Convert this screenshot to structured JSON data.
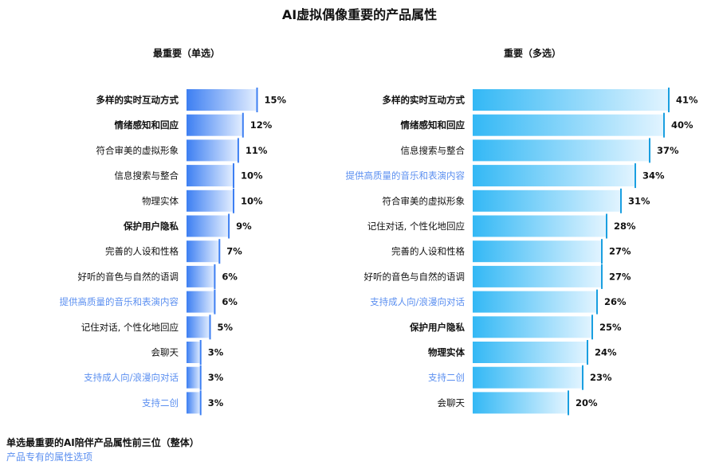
{
  "chart_data": [
    {
      "type": "bar",
      "orientation": "horizontal",
      "title": "AI虚拟偶像重要的产品属性",
      "subtitle": "最重要（单选）",
      "unit": "%",
      "categories": [
        "多样的实时互动方式",
        "情绪感知和回应",
        "符合审美的虚拟形象",
        "信息搜索与整合",
        "物理实体",
        "保护用户隐私",
        "完善的人设和性格",
        "好听的音色与自然的语调",
        "提供高质量的音乐和表演内容",
        "记住对话, 个性化地回应",
        "会聊天",
        "支持成人向/浪漫向对话",
        "支持二创"
      ],
      "values": [
        15,
        12,
        11,
        10,
        10,
        9,
        7,
        6,
        6,
        5,
        3,
        3,
        3
      ],
      "value_labels": [
        "15%",
        "12%",
        "11%",
        "10%",
        "10%",
        "9%",
        "7%",
        "6%",
        "6%",
        "5%",
        "3%",
        "3%",
        "3%"
      ],
      "bold": [
        true,
        true,
        false,
        false,
        false,
        true,
        false,
        false,
        false,
        false,
        false,
        false,
        false
      ],
      "highlight": [
        false,
        false,
        false,
        false,
        false,
        false,
        false,
        false,
        true,
        false,
        false,
        true,
        true
      ],
      "xlim": [
        0,
        45
      ],
      "color_start": "#3d7ff2",
      "color_end": "#e3eeff",
      "line_color": "#3d7ff2"
    },
    {
      "type": "bar",
      "orientation": "horizontal",
      "subtitle": "重要（多选）",
      "unit": "%",
      "categories": [
        "多样的实时互动方式",
        "情绪感知和回应",
        "信息搜索与整合",
        "提供高质量的音乐和表演内容",
        "符合审美的虚拟形象",
        "记住对话, 个性化地回应",
        "完善的人设和性格",
        "好听的音色与自然的语调",
        "支持成人向/浪漫向对话",
        "保护用户隐私",
        "物理实体",
        "支持二创",
        "会聊天"
      ],
      "values": [
        41,
        40,
        37,
        34,
        31,
        28,
        27,
        27,
        26,
        25,
        24,
        23,
        20
      ],
      "value_labels": [
        "41%",
        "40%",
        "37%",
        "34%",
        "31%",
        "28%",
        "27%",
        "27%",
        "26%",
        "25%",
        "24%",
        "23%",
        "20%"
      ],
      "bold": [
        true,
        true,
        false,
        false,
        false,
        false,
        false,
        false,
        false,
        true,
        true,
        false,
        false
      ],
      "highlight": [
        false,
        false,
        false,
        true,
        false,
        false,
        false,
        false,
        true,
        false,
        false,
        true,
        false
      ],
      "xlim": [
        0,
        45
      ],
      "color_start": "#33b8f5",
      "color_end": "#e2f4ff",
      "line_color": "#1a9fe0"
    }
  ],
  "notes": {
    "line1": "单选最重要的AI陪伴产品属性前三位（整体）",
    "line2": "产品专有的属性选项"
  }
}
